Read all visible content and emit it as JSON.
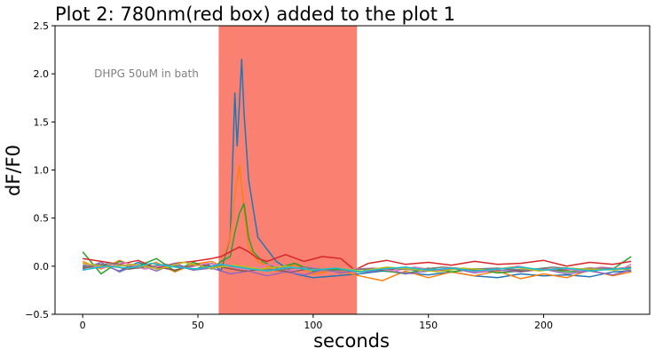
{
  "chart_data": {
    "type": "line",
    "title": "Plot 2: 780nm(red box) added to the plot 1",
    "xlabel": "seconds",
    "ylabel": "dF/F0",
    "xlim": [
      -12,
      246
    ],
    "ylim": [
      -0.5,
      2.5
    ],
    "xticks": [
      "0",
      "50",
      "100",
      "150",
      "200"
    ],
    "xtick_values": [
      0,
      50,
      100,
      150,
      200
    ],
    "yticks": [
      "−0.5",
      "0.0",
      "0.5",
      "1.0",
      "1.5",
      "2.0",
      "2.5"
    ],
    "ytick_values": [
      -0.5,
      0.0,
      0.5,
      1.0,
      1.5,
      2.0,
      2.5
    ],
    "grid": false,
    "annotation": {
      "text": "DHPG 50uM in bath",
      "x": 5,
      "y": 2.0
    },
    "highlight": {
      "x_start": 59,
      "x_end": 119,
      "color": "#fa8072"
    },
    "series": [
      {
        "color": "#1f77b4",
        "x": [
          0,
          8,
          16,
          24,
          32,
          40,
          48,
          56,
          60,
          64,
          66,
          67,
          68,
          69,
          70,
          72,
          76,
          84,
          92,
          100,
          110,
          120,
          130,
          140,
          150,
          160,
          170,
          180,
          190,
          200,
          210,
          220,
          230,
          238
        ],
        "y": [
          0.0,
          0.02,
          -0.05,
          0.04,
          -0.03,
          0.01,
          -0.04,
          0.03,
          -0.05,
          0.3,
          1.8,
          1.25,
          1.7,
          2.15,
          1.6,
          0.9,
          0.3,
          0.05,
          -0.08,
          -0.12,
          -0.1,
          -0.08,
          -0.05,
          -0.07,
          -0.09,
          -0.06,
          -0.1,
          -0.12,
          -0.08,
          -0.1,
          -0.09,
          -0.11,
          -0.06,
          -0.05
        ]
      },
      {
        "color": "#ff7f0e",
        "x": [
          0,
          8,
          16,
          24,
          32,
          40,
          48,
          56,
          60,
          64,
          66,
          68,
          70,
          72,
          76,
          84,
          92,
          100,
          110,
          120,
          130,
          140,
          150,
          160,
          170,
          180,
          190,
          200,
          210,
          220,
          230,
          238
        ],
        "y": [
          0.05,
          -0.03,
          0.06,
          -0.02,
          0.04,
          -0.06,
          0.02,
          0.05,
          0.0,
          0.3,
          0.75,
          1.05,
          0.6,
          0.2,
          0.05,
          -0.05,
          0.02,
          -0.08,
          -0.04,
          -0.1,
          -0.15,
          -0.05,
          -0.12,
          -0.06,
          -0.1,
          -0.05,
          -0.13,
          -0.08,
          -0.12,
          -0.04,
          -0.1,
          -0.06
        ]
      },
      {
        "color": "#2ca02c",
        "x": [
          0,
          8,
          16,
          24,
          32,
          40,
          48,
          56,
          60,
          64,
          66,
          68,
          70,
          72,
          74,
          78,
          84,
          92,
          100,
          110,
          120,
          130,
          140,
          150,
          160,
          170,
          180,
          190,
          200,
          210,
          220,
          230,
          238
        ],
        "y": [
          0.15,
          -0.08,
          0.05,
          0.0,
          0.08,
          -0.05,
          0.04,
          -0.03,
          0.05,
          0.1,
          0.35,
          0.55,
          0.65,
          0.3,
          0.15,
          0.05,
          -0.02,
          0.03,
          -0.05,
          -0.03,
          -0.06,
          -0.04,
          -0.08,
          -0.02,
          -0.06,
          -0.03,
          -0.07,
          -0.05,
          -0.02,
          -0.06,
          -0.04,
          -0.03,
          0.1
        ]
      },
      {
        "color": "#d62728",
        "x": [
          0,
          8,
          16,
          24,
          32,
          40,
          48,
          56,
          60,
          64,
          68,
          72,
          76,
          80,
          88,
          96,
          104,
          112,
          118,
          124,
          132,
          140,
          150,
          160,
          170,
          180,
          190,
          200,
          210,
          220,
          230,
          238
        ],
        "y": [
          0.08,
          0.05,
          0.02,
          0.06,
          -0.02,
          0.03,
          0.05,
          0.08,
          0.1,
          0.15,
          0.2,
          0.15,
          0.08,
          0.05,
          0.12,
          0.05,
          0.1,
          0.08,
          -0.04,
          0.03,
          0.06,
          0.02,
          0.04,
          0.01,
          0.05,
          0.02,
          0.03,
          0.06,
          0.0,
          0.04,
          0.02,
          0.05
        ]
      },
      {
        "color": "#9467bd",
        "x": [
          0,
          8,
          16,
          24,
          32,
          40,
          48,
          56,
          64,
          72,
          80,
          88,
          96,
          104,
          112,
          118,
          124,
          132,
          140,
          150,
          160,
          170,
          180,
          190,
          200,
          210,
          220,
          230,
          238
        ],
        "y": [
          -0.03,
          0.04,
          -0.06,
          0.02,
          -0.05,
          0.03,
          -0.04,
          -0.02,
          -0.08,
          -0.05,
          -0.1,
          -0.06,
          -0.09,
          -0.04,
          -0.07,
          -0.05,
          -0.06,
          -0.03,
          -0.08,
          -0.05,
          -0.02,
          -0.07,
          -0.04,
          -0.06,
          -0.03,
          -0.08,
          -0.05,
          -0.09,
          -0.04
        ]
      },
      {
        "color": "#8c564b",
        "x": [
          0,
          10,
          20,
          30,
          40,
          50,
          60,
          70,
          80,
          90,
          100,
          110,
          120,
          130,
          140,
          150,
          160,
          170,
          180,
          190,
          200,
          210,
          220,
          230,
          238
        ],
        "y": [
          -0.02,
          0.01,
          -0.03,
          0.0,
          -0.04,
          0.02,
          -0.01,
          -0.05,
          -0.03,
          -0.06,
          -0.02,
          -0.05,
          -0.03,
          -0.04,
          -0.02,
          -0.05,
          -0.03,
          -0.04,
          -0.02,
          -0.05,
          -0.03,
          -0.04,
          -0.02,
          -0.03,
          -0.01
        ]
      },
      {
        "color": "#e377c2",
        "x": [
          0,
          9,
          18,
          27,
          36,
          45,
          54,
          63,
          72,
          81,
          90,
          99,
          108,
          117,
          126,
          135,
          144,
          153,
          162,
          171,
          180,
          189,
          198,
          207,
          216,
          225,
          234,
          238
        ],
        "y": [
          0.02,
          -0.02,
          0.04,
          -0.03,
          0.01,
          -0.02,
          0.03,
          0.0,
          -0.04,
          0.02,
          -0.05,
          -0.01,
          -0.06,
          -0.03,
          -0.02,
          -0.05,
          -0.01,
          -0.04,
          -0.02,
          -0.06,
          -0.03,
          0.0,
          -0.04,
          -0.02,
          -0.05,
          -0.01,
          -0.03,
          0.02
        ]
      },
      {
        "color": "#7f7f7f",
        "x": [
          0,
          12,
          24,
          36,
          48,
          60,
          72,
          84,
          96,
          108,
          120,
          132,
          144,
          156,
          168,
          180,
          192,
          204,
          216,
          228,
          238
        ],
        "y": [
          -0.01,
          0.03,
          -0.02,
          0.02,
          -0.03,
          0.01,
          -0.02,
          -0.04,
          -0.01,
          -0.05,
          -0.03,
          -0.02,
          -0.04,
          -0.01,
          -0.03,
          -0.02,
          -0.04,
          -0.01,
          -0.03,
          -0.02,
          -0.04
        ]
      },
      {
        "color": "#bcbd22",
        "x": [
          0,
          11,
          22,
          33,
          44,
          55,
          66,
          77,
          88,
          99,
          110,
          121,
          132,
          143,
          154,
          165,
          176,
          187,
          198,
          209,
          220,
          231,
          238
        ],
        "y": [
          0.03,
          -0.01,
          0.02,
          -0.03,
          0.04,
          -0.02,
          0.01,
          -0.03,
          0.0,
          -0.04,
          -0.02,
          -0.05,
          -0.01,
          -0.03,
          -0.06,
          -0.02,
          -0.04,
          -0.01,
          -0.05,
          -0.02,
          -0.03,
          -0.04,
          -0.02
        ]
      },
      {
        "color": "#17becf",
        "x": [
          0,
          10,
          20,
          30,
          40,
          50,
          60,
          70,
          80,
          90,
          100,
          110,
          120,
          130,
          140,
          150,
          160,
          170,
          180,
          190,
          200,
          210,
          220,
          230,
          238
        ],
        "y": [
          -0.04,
          0.0,
          -0.02,
          0.03,
          -0.01,
          -0.03,
          0.02,
          -0.02,
          -0.05,
          -0.01,
          -0.04,
          -0.02,
          -0.06,
          -0.03,
          -0.01,
          -0.04,
          -0.02,
          -0.05,
          -0.03,
          -0.01,
          -0.04,
          -0.02,
          -0.05,
          -0.03,
          -0.02
        ]
      }
    ]
  }
}
